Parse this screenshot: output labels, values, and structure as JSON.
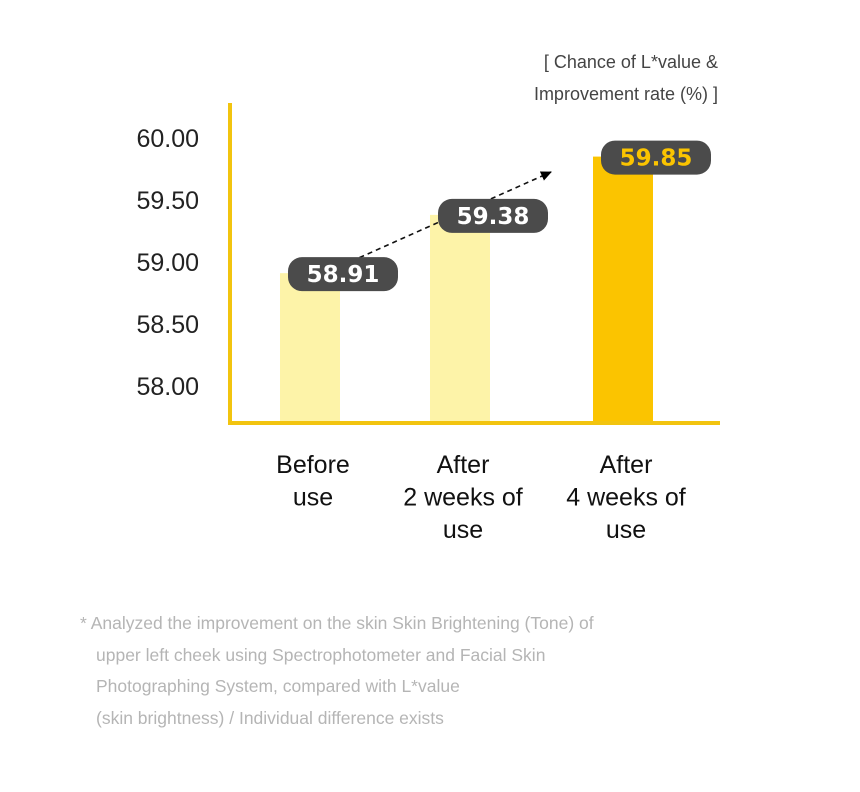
{
  "unit_note": {
    "line1": "[ Chance of L*value &",
    "line2": "Improvement rate (%) ]"
  },
  "chart_data": {
    "type": "bar",
    "categories": [
      [
        "Before",
        "use"
      ],
      [
        "After",
        "2 weeks of",
        "use"
      ],
      [
        "After",
        "4 weeks of",
        "use"
      ]
    ],
    "values": [
      58.91,
      59.38,
      59.85
    ],
    "value_labels": [
      "58.91",
      "59.38",
      "59.85"
    ],
    "yticks": [
      "60.00",
      "59.50",
      "59.00",
      "58.50",
      "58.00"
    ],
    "ytick_values": [
      60.0,
      59.5,
      59.0,
      58.5,
      58.0
    ],
    "ylim": [
      57.75,
      60.25
    ],
    "grid": false,
    "trend_arrow": true,
    "colors": {
      "axis": "#f2c40f",
      "bar_light": "#fdf3a8",
      "bar_highlight": "#fbc400",
      "label_bg": "#4b4b4b",
      "label_text": "#ffffff",
      "label_text_highlight": "#fbc400",
      "tick_text": "#222222"
    },
    "highlight_index": 2
  },
  "footnote": [
    "* Analyzed the improvement on the skin Skin Brightening (Tone) of",
    "upper left cheek  using Spectrophotometer and Facial Skin",
    "Photographing System, compared with L*value",
    "(skin brightness) / Individual difference exists"
  ]
}
